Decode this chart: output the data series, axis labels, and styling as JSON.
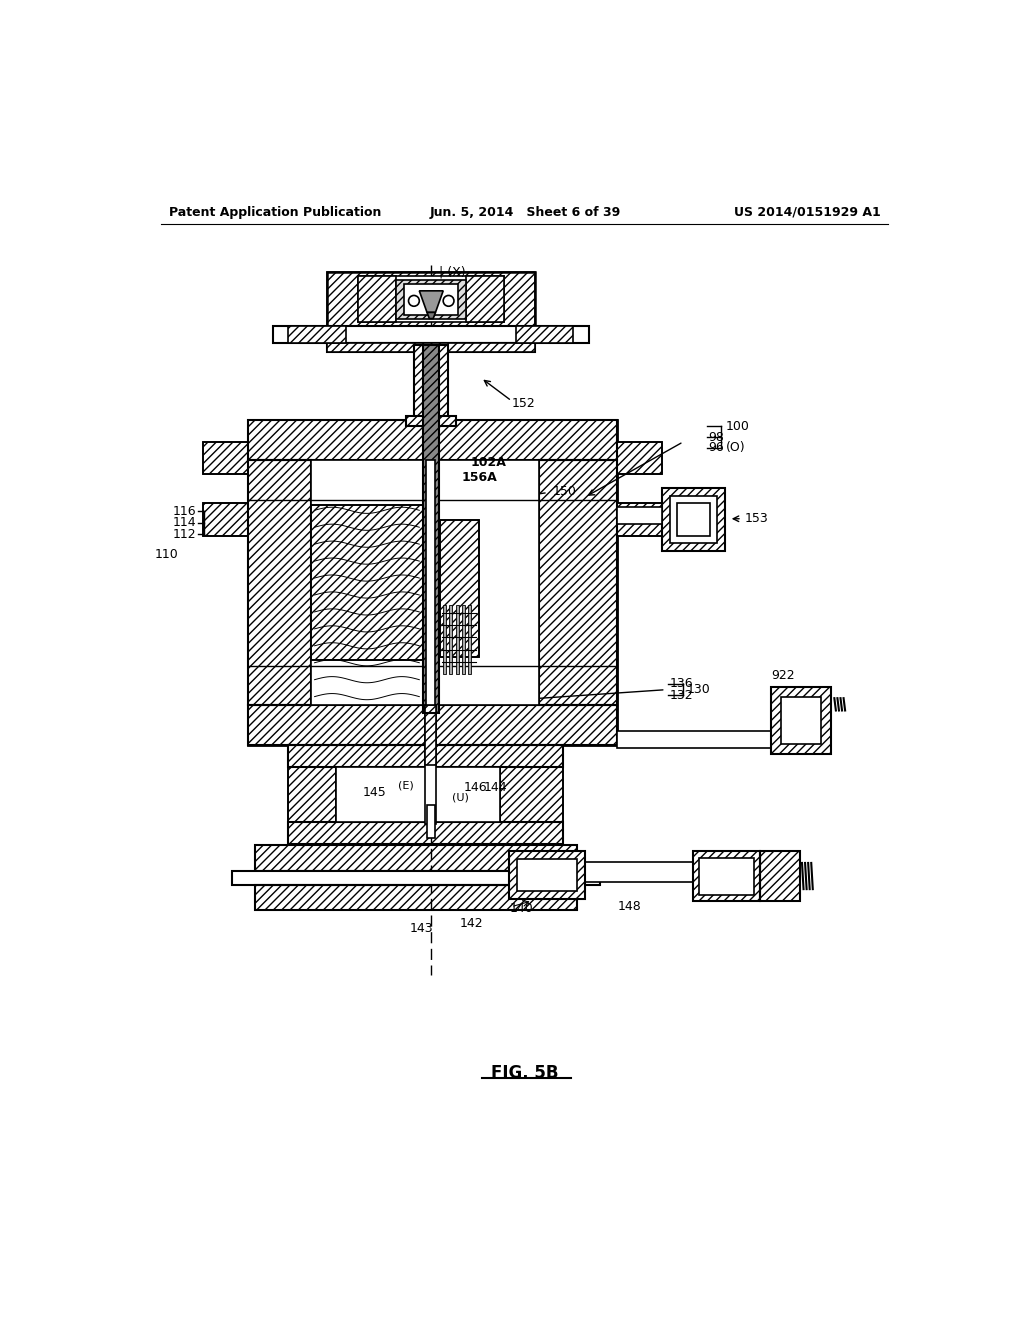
{
  "background_color": "#ffffff",
  "header_left": "Patent Application Publication",
  "header_center": "Jun. 5, 2014   Sheet 6 of 39",
  "header_right": "US 2014/0151929 A1",
  "figure_label": "FIG. 5B",
  "title_fontsize": 10,
  "line_color": "#000000"
}
